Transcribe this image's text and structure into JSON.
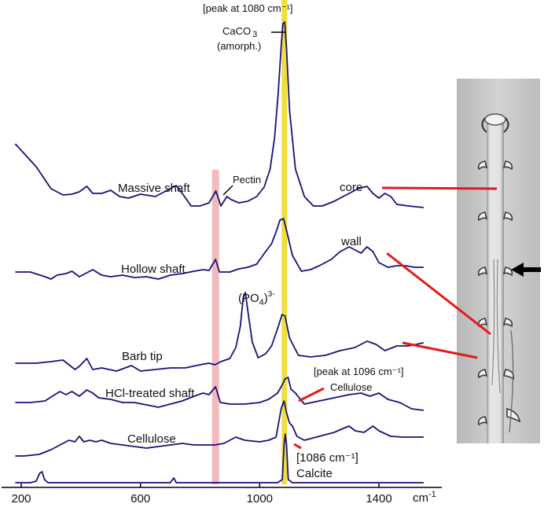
{
  "chart_data": {
    "type": "line",
    "xlabel": "cm-1",
    "xlim": [
      180,
      1560
    ],
    "x_ticks": [
      200,
      600,
      1000,
      1400
    ],
    "x_unit_label": "cm",
    "x_unit_exp": "-1",
    "highlight_bands": [
      {
        "name": "pectin-band",
        "center": 852,
        "color": "#f5b8bd"
      },
      {
        "name": "carbonate-band",
        "center": 1083,
        "color": "#f2de3a"
      }
    ],
    "annotations": {
      "peak_1080": "[peak at 1080 cm⁻¹]",
      "caco3": "CaCO",
      "caco3_sub": "3",
      "amorph": "(amorph.)",
      "pectin": "Pectin",
      "core": "core",
      "wall": "wall",
      "po4_pre": "(PO",
      "po4_sub": "4",
      "po4_post": ")",
      "po4_sup": "3-",
      "peak_1096": "[peak at 1096 cm⁻¹]",
      "cellulose_peak": "Cellulose",
      "calcite_peak": "[1086 cm⁻¹]",
      "calcite": "Calcite"
    },
    "series": [
      {
        "name": "Massive shaft",
        "points": [
          [
            180,
            183
          ],
          [
            250,
            212
          ],
          [
            300,
            240
          ],
          [
            340,
            248
          ],
          [
            370,
            247
          ],
          [
            395,
            244
          ],
          [
            420,
            237
          ],
          [
            440,
            246
          ],
          [
            470,
            246
          ],
          [
            500,
            242
          ],
          [
            530,
            250
          ],
          [
            560,
            252
          ],
          [
            600,
            247
          ],
          [
            650,
            250
          ],
          [
            690,
            242
          ],
          [
            720,
            236
          ],
          [
            740,
            246
          ],
          [
            770,
            262
          ],
          [
            800,
            262
          ],
          [
            830,
            258
          ],
          [
            853,
            243
          ],
          [
            870,
            262
          ],
          [
            890,
            250
          ],
          [
            905,
            254
          ],
          [
            930,
            258
          ],
          [
            960,
            256
          ],
          [
            990,
            250
          ],
          [
            1015,
            238
          ],
          [
            1035,
            215
          ],
          [
            1050,
            175
          ],
          [
            1062,
            120
          ],
          [
            1072,
            60
          ],
          [
            1078,
            30
          ],
          [
            1084,
            28
          ],
          [
            1090,
            62
          ],
          [
            1100,
            140
          ],
          [
            1120,
            215
          ],
          [
            1150,
            250
          ],
          [
            1180,
            262
          ],
          [
            1210,
            262
          ],
          [
            1250,
            256
          ],
          [
            1300,
            246
          ],
          [
            1330,
            240
          ],
          [
            1360,
            237
          ],
          [
            1380,
            246
          ],
          [
            1400,
            252
          ],
          [
            1420,
            246
          ],
          [
            1440,
            250
          ],
          [
            1460,
            260
          ],
          [
            1500,
            262
          ],
          [
            1550,
            264
          ]
        ]
      },
      {
        "name": "Hollow shaft",
        "points": [
          [
            180,
            346
          ],
          [
            230,
            346
          ],
          [
            280,
            352
          ],
          [
            300,
            355
          ],
          [
            320,
            350
          ],
          [
            350,
            348
          ],
          [
            370,
            345
          ],
          [
            395,
            352
          ],
          [
            415,
            348
          ],
          [
            440,
            343
          ],
          [
            470,
            350
          ],
          [
            500,
            352
          ],
          [
            540,
            350
          ],
          [
            580,
            353
          ],
          [
            620,
            352
          ],
          [
            660,
            355
          ],
          [
            700,
            350
          ],
          [
            740,
            348
          ],
          [
            780,
            345
          ],
          [
            810,
            343
          ],
          [
            830,
            344
          ],
          [
            852,
            330
          ],
          [
            865,
            346
          ],
          [
            900,
            346
          ],
          [
            930,
            342
          ],
          [
            960,
            340
          ],
          [
            990,
            336
          ],
          [
            1020,
            320
          ],
          [
            1040,
            310
          ],
          [
            1055,
            295
          ],
          [
            1068,
            280
          ],
          [
            1080,
            278
          ],
          [
            1092,
            296
          ],
          [
            1110,
            325
          ],
          [
            1140,
            345
          ],
          [
            1170,
            343
          ],
          [
            1200,
            338
          ],
          [
            1240,
            330
          ],
          [
            1270,
            320
          ],
          [
            1300,
            314
          ],
          [
            1320,
            318
          ],
          [
            1340,
            322
          ],
          [
            1360,
            314
          ],
          [
            1380,
            320
          ],
          [
            1400,
            334
          ],
          [
            1430,
            340
          ],
          [
            1460,
            338
          ],
          [
            1490,
            338
          ],
          [
            1520,
            340
          ],
          [
            1550,
            340
          ]
        ]
      },
      {
        "name": "Barb tip",
        "points": [
          [
            180,
            462
          ],
          [
            250,
            462
          ],
          [
            300,
            460
          ],
          [
            340,
            458
          ],
          [
            380,
            470
          ],
          [
            395,
            466
          ],
          [
            420,
            456
          ],
          [
            440,
            470
          ],
          [
            470,
            468
          ],
          [
            520,
            472
          ],
          [
            570,
            465
          ],
          [
            600,
            472
          ],
          [
            650,
            470
          ],
          [
            700,
            468
          ],
          [
            750,
            468
          ],
          [
            800,
            464
          ],
          [
            830,
            462
          ],
          [
            850,
            464
          ],
          [
            870,
            460
          ],
          [
            900,
            456
          ],
          [
            920,
            442
          ],
          [
            935,
            415
          ],
          [
            945,
            378
          ],
          [
            952,
            372
          ],
          [
            960,
            395
          ],
          [
            975,
            435
          ],
          [
            995,
            455
          ],
          [
            1020,
            450
          ],
          [
            1040,
            440
          ],
          [
            1060,
            418
          ],
          [
            1075,
            400
          ],
          [
            1085,
            402
          ],
          [
            1100,
            430
          ],
          [
            1130,
            452
          ],
          [
            1170,
            454
          ],
          [
            1220,
            452
          ],
          [
            1270,
            446
          ],
          [
            1320,
            442
          ],
          [
            1360,
            434
          ],
          [
            1390,
            438
          ],
          [
            1420,
            446
          ],
          [
            1460,
            440
          ],
          [
            1500,
            440
          ],
          [
            1550,
            436
          ]
        ]
      },
      {
        "name": "HCl-treated shaft",
        "points": [
          [
            180,
            512
          ],
          [
            230,
            512
          ],
          [
            280,
            510
          ],
          [
            300,
            505
          ],
          [
            330,
            498
          ],
          [
            350,
            502
          ],
          [
            370,
            498
          ],
          [
            395,
            504
          ],
          [
            420,
            496
          ],
          [
            440,
            500
          ],
          [
            460,
            506
          ],
          [
            500,
            508
          ],
          [
            540,
            512
          ],
          [
            580,
            512
          ],
          [
            620,
            515
          ],
          [
            660,
            518
          ],
          [
            700,
            514
          ],
          [
            740,
            510
          ],
          [
            780,
            504
          ],
          [
            810,
            500
          ],
          [
            830,
            502
          ],
          [
            852,
            492
          ],
          [
            868,
            512
          ],
          [
            900,
            514
          ],
          [
            950,
            514
          ],
          [
            1000,
            512
          ],
          [
            1030,
            508
          ],
          [
            1060,
            500
          ],
          [
            1075,
            490
          ],
          [
            1085,
            482
          ],
          [
            1095,
            480
          ],
          [
            1105,
            495
          ],
          [
            1120,
            500
          ],
          [
            1150,
            514
          ],
          [
            1200,
            510
          ],
          [
            1250,
            506
          ],
          [
            1300,
            502
          ],
          [
            1340,
            500
          ],
          [
            1370,
            504
          ],
          [
            1400,
            500
          ],
          [
            1430,
            508
          ],
          [
            1470,
            512
          ],
          [
            1510,
            520
          ],
          [
            1550,
            522
          ]
        ]
      },
      {
        "name": "Cellulose",
        "points": [
          [
            180,
            580
          ],
          [
            210,
            580
          ],
          [
            260,
            578
          ],
          [
            300,
            572
          ],
          [
            330,
            566
          ],
          [
            360,
            560
          ],
          [
            380,
            562
          ],
          [
            395,
            555
          ],
          [
            410,
            562
          ],
          [
            430,
            560
          ],
          [
            450,
            562
          ],
          [
            470,
            560
          ],
          [
            500,
            564
          ],
          [
            540,
            566
          ],
          [
            580,
            568
          ],
          [
            620,
            570
          ],
          [
            660,
            568
          ],
          [
            700,
            566
          ],
          [
            740,
            564
          ],
          [
            780,
            566
          ],
          [
            800,
            566
          ],
          [
            850,
            566
          ],
          [
            880,
            564
          ],
          [
            900,
            560
          ],
          [
            920,
            556
          ],
          [
            950,
            560
          ],
          [
            1000,
            562
          ],
          [
            1030,
            560
          ],
          [
            1055,
            556
          ],
          [
            1072,
            520
          ],
          [
            1082,
            510
          ],
          [
            1090,
            525
          ],
          [
            1100,
            538
          ],
          [
            1110,
            542
          ],
          [
            1125,
            555
          ],
          [
            1150,
            560
          ],
          [
            1200,
            555
          ],
          [
            1250,
            550
          ],
          [
            1280,
            545
          ],
          [
            1300,
            542
          ],
          [
            1320,
            548
          ],
          [
            1350,
            550
          ],
          [
            1380,
            542
          ],
          [
            1400,
            548
          ],
          [
            1440,
            555
          ],
          [
            1480,
            556
          ],
          [
            1520,
            556
          ],
          [
            1550,
            556
          ]
        ]
      },
      {
        "name": "Calcite",
        "points": [
          [
            180,
            614
          ],
          [
            230,
            614
          ],
          [
            250,
            612
          ],
          [
            262,
            602
          ],
          [
            270,
            600
          ],
          [
            278,
            610
          ],
          [
            290,
            614
          ],
          [
            400,
            614
          ],
          [
            500,
            614
          ],
          [
            600,
            614
          ],
          [
            700,
            614
          ],
          [
            712,
            608
          ],
          [
            720,
            614
          ],
          [
            800,
            614
          ],
          [
            900,
            614
          ],
          [
            1000,
            614
          ],
          [
            1060,
            614
          ],
          [
            1076,
            610
          ],
          [
            1082,
            565
          ],
          [
            1086,
            552
          ],
          [
            1090,
            566
          ],
          [
            1096,
            610
          ],
          [
            1110,
            614
          ],
          [
            1200,
            614
          ],
          [
            1300,
            614
          ],
          [
            1400,
            614
          ],
          [
            1500,
            614
          ],
          [
            1550,
            614
          ]
        ]
      }
    ]
  }
}
